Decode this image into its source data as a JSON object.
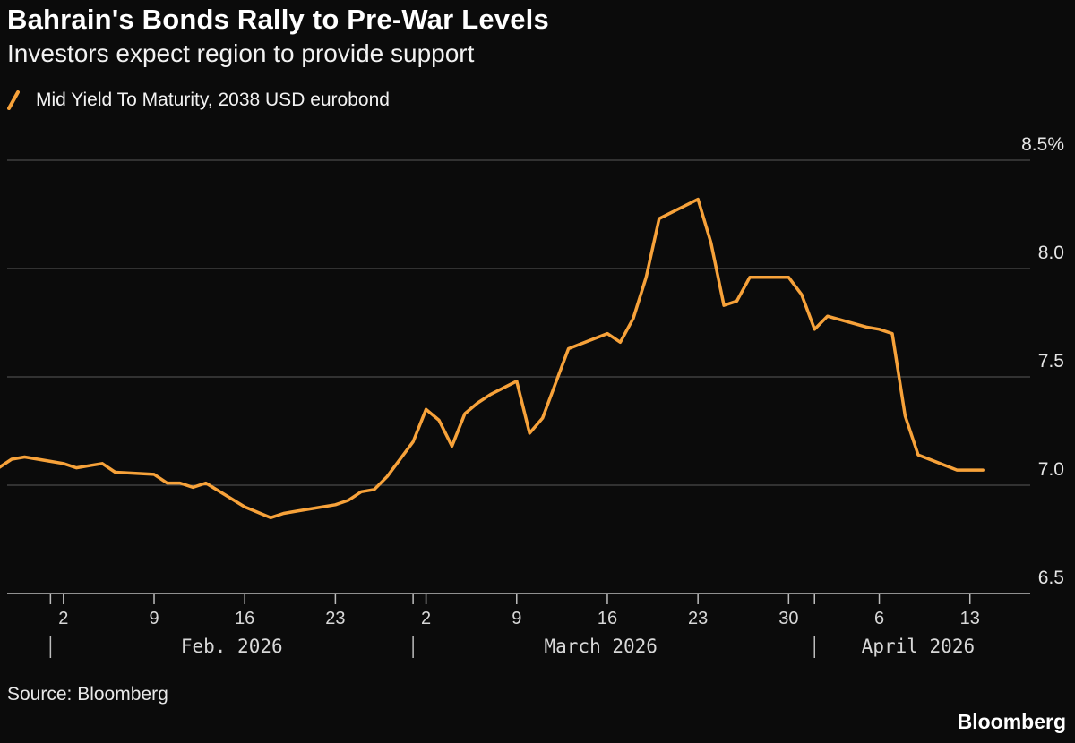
{
  "header": {
    "title": "Bahrain's Bonds Rally to Pre-War Levels",
    "subtitle": "Investors expect region to provide support"
  },
  "legend": {
    "label": "Mid Yield To Maturity, 2038 USD eurobond"
  },
  "footer": {
    "source": "Source: Bloomberg",
    "brand": "Bloomberg"
  },
  "colors": {
    "line": "#f7a23a",
    "background": "#0b0b0b",
    "grid": "#5a5a5a",
    "axis": "#bdbdbd"
  },
  "chart_data": {
    "type": "line",
    "title": "Bahrain's Bonds Rally to Pre-War Levels",
    "subtitle": "Investors expect region to provide support",
    "xlabel": "",
    "ylabel": "",
    "ylim": [
      6.5,
      8.5
    ],
    "xlim": [
      -4,
      75
    ],
    "x_unit": "days since Feb. 2, 2026",
    "grid": true,
    "legend_position": "top-left",
    "y_ticks": [
      {
        "value": 8.5,
        "label": "8.5%"
      },
      {
        "value": 8.0,
        "label": "8.0"
      },
      {
        "value": 7.5,
        "label": "7.5"
      },
      {
        "value": 7.0,
        "label": "7.0"
      },
      {
        "value": 6.5,
        "label": "6.5"
      }
    ],
    "x_ticks": [
      {
        "x": 0,
        "label": "2"
      },
      {
        "x": 7,
        "label": "9"
      },
      {
        "x": 14,
        "label": "16"
      },
      {
        "x": 21,
        "label": "23"
      },
      {
        "x": 28,
        "label": "2"
      },
      {
        "x": 35,
        "label": "9"
      },
      {
        "x": 42,
        "label": "16"
      },
      {
        "x": 49,
        "label": "23"
      },
      {
        "x": 56,
        "label": "30"
      },
      {
        "x": 63,
        "label": "6"
      },
      {
        "x": 70,
        "label": "13"
      }
    ],
    "month_boundaries": [
      -1,
      27,
      58
    ],
    "months": [
      {
        "label": "Feb. 2026",
        "x": 13
      },
      {
        "label": "March 2026",
        "x": 41.5
      },
      {
        "label": "April 2026",
        "x": 66
      }
    ],
    "series": [
      {
        "name": "Mid Yield To Maturity, 2038 USD eurobond",
        "x": [
          -5,
          -4,
          -3,
          -1,
          0,
          1,
          2,
          3,
          4,
          7,
          8,
          9,
          10,
          11,
          14,
          16,
          17,
          18,
          21,
          22,
          23,
          24,
          25,
          27,
          28,
          29,
          30,
          31,
          32,
          33,
          35,
          36,
          37,
          38,
          39,
          42,
          43,
          44,
          45,
          46,
          47,
          49,
          50,
          51,
          52,
          53,
          55,
          56,
          57,
          58,
          59,
          62,
          63,
          64,
          65,
          66,
          69,
          70,
          71
        ],
        "values": [
          7.08,
          7.12,
          7.13,
          7.11,
          7.1,
          7.08,
          7.09,
          7.1,
          7.06,
          7.05,
          7.01,
          7.01,
          6.99,
          7.01,
          6.9,
          6.85,
          6.87,
          6.88,
          6.91,
          6.93,
          6.97,
          6.98,
          7.04,
          7.2,
          7.35,
          7.3,
          7.18,
          7.33,
          7.38,
          7.42,
          7.48,
          7.24,
          7.31,
          7.47,
          7.63,
          7.7,
          7.66,
          7.77,
          7.96,
          8.23,
          8.26,
          8.32,
          8.12,
          7.83,
          7.85,
          7.96,
          7.96,
          7.96,
          7.88,
          7.72,
          7.78,
          7.73,
          7.72,
          7.7,
          7.32,
          7.14,
          7.07,
          7.07,
          7.07
        ]
      }
    ]
  }
}
